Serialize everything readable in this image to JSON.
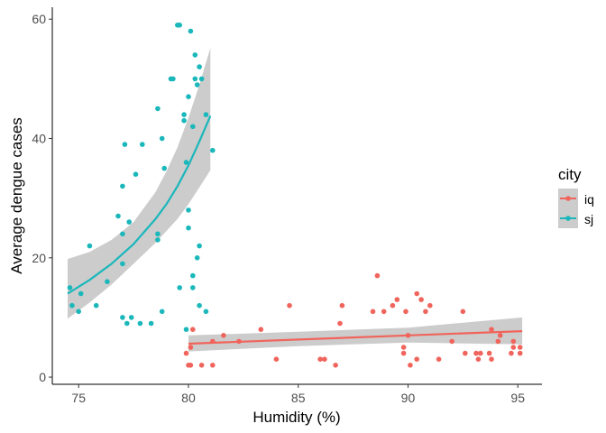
{
  "chart_data": {
    "type": "scatter",
    "xlabel": "Humidity (%)",
    "ylabel": "Average dengue cases",
    "xlim": [
      73.8,
      96.1
    ],
    "ylim": [
      -1.2,
      62
    ],
    "x_ticks": [
      75,
      80,
      85,
      90,
      95
    ],
    "y_ticks": [
      0,
      20,
      40,
      60
    ],
    "grid": false,
    "legend": {
      "title": "city",
      "position": "right"
    },
    "band_color": "#cccccc",
    "series": [
      {
        "name": "iq",
        "color": "#f0645c",
        "points": [
          [
            79.9,
            4
          ],
          [
            80.0,
            2
          ],
          [
            80.1,
            2
          ],
          [
            80.1,
            5
          ],
          [
            80.2,
            8
          ],
          [
            80.6,
            2
          ],
          [
            81.1,
            6
          ],
          [
            81.1,
            2
          ],
          [
            81.6,
            7
          ],
          [
            82.3,
            6
          ],
          [
            83.3,
            8
          ],
          [
            84.0,
            3
          ],
          [
            84.6,
            12
          ],
          [
            86.0,
            3
          ],
          [
            86.2,
            3
          ],
          [
            86.7,
            2
          ],
          [
            86.9,
            9
          ],
          [
            87.0,
            12
          ],
          [
            88.4,
            11
          ],
          [
            88.6,
            17
          ],
          [
            88.9,
            11
          ],
          [
            89.3,
            12
          ],
          [
            89.5,
            13
          ],
          [
            89.8,
            4
          ],
          [
            89.8,
            5
          ],
          [
            89.9,
            11
          ],
          [
            90.0,
            7
          ],
          [
            90.1,
            2
          ],
          [
            90.4,
            3
          ],
          [
            90.4,
            14
          ],
          [
            90.6,
            13
          ],
          [
            90.8,
            11
          ],
          [
            91.0,
            12
          ],
          [
            91.4,
            3
          ],
          [
            92.0,
            6
          ],
          [
            92.5,
            11
          ],
          [
            92.6,
            4
          ],
          [
            93.1,
            4
          ],
          [
            93.2,
            3
          ],
          [
            93.3,
            4
          ],
          [
            93.7,
            4
          ],
          [
            93.8,
            8
          ],
          [
            93.8,
            3
          ],
          [
            94.1,
            6
          ],
          [
            94.2,
            7
          ],
          [
            94.7,
            4
          ],
          [
            94.8,
            6
          ],
          [
            94.8,
            5
          ],
          [
            95.1,
            5
          ],
          [
            95.1,
            4
          ]
        ],
        "trend": [
          [
            80.0,
            5.6
          ],
          [
            85.0,
            6.3
          ],
          [
            90.0,
            7.0
          ],
          [
            95.2,
            7.7
          ]
        ],
        "band_upper": [
          [
            80.0,
            7.0
          ],
          [
            85.0,
            7.6
          ],
          [
            90.0,
            8.3
          ],
          [
            95.2,
            10.0
          ]
        ],
        "band_lower": [
          [
            80.0,
            4.3
          ],
          [
            85.0,
            5.2
          ],
          [
            90.0,
            5.8
          ],
          [
            95.2,
            5.5
          ]
        ]
      },
      {
        "name": "sj",
        "color": "#1ab7bb",
        "points": [
          [
            74.6,
            15
          ],
          [
            74.7,
            12
          ],
          [
            75.0,
            11
          ],
          [
            75.1,
            14
          ],
          [
            75.5,
            22
          ],
          [
            75.8,
            12
          ],
          [
            76.3,
            16
          ],
          [
            76.8,
            27
          ],
          [
            77.0,
            19
          ],
          [
            77.0,
            10
          ],
          [
            77.0,
            24
          ],
          [
            77.0,
            32
          ],
          [
            77.1,
            39
          ],
          [
            77.2,
            9
          ],
          [
            77.3,
            26
          ],
          [
            77.4,
            10
          ],
          [
            77.6,
            34
          ],
          [
            77.8,
            9
          ],
          [
            77.9,
            39
          ],
          [
            78.3,
            9
          ],
          [
            78.6,
            24
          ],
          [
            78.6,
            23
          ],
          [
            78.6,
            45
          ],
          [
            78.8,
            11
          ],
          [
            78.8,
            40
          ],
          [
            78.9,
            35
          ],
          [
            79.2,
            50
          ],
          [
            79.3,
            50
          ],
          [
            79.5,
            59
          ],
          [
            79.6,
            59
          ],
          [
            79.6,
            15
          ],
          [
            79.8,
            44
          ],
          [
            79.8,
            43
          ],
          [
            79.9,
            36
          ],
          [
            80.0,
            28
          ],
          [
            80.0,
            25
          ],
          [
            80.0,
            47
          ],
          [
            80.1,
            58
          ],
          [
            80.2,
            42
          ],
          [
            80.2,
            17
          ],
          [
            80.2,
            15
          ],
          [
            80.3,
            54
          ],
          [
            80.3,
            50
          ],
          [
            80.4,
            49
          ],
          [
            80.4,
            20
          ],
          [
            80.5,
            52
          ],
          [
            80.5,
            12
          ],
          [
            80.5,
            22
          ],
          [
            80.6,
            50
          ],
          [
            80.8,
            11
          ],
          [
            80.8,
            44
          ],
          [
            79.9,
            8
          ],
          [
            81.1,
            38
          ]
        ],
        "trend": [
          [
            74.5,
            14.0
          ],
          [
            75.5,
            16.3
          ],
          [
            76.5,
            19.0
          ],
          [
            77.5,
            22.3
          ],
          [
            78.5,
            26.5
          ],
          [
            79.0,
            29.0
          ],
          [
            79.5,
            32.0
          ],
          [
            80.0,
            35.5
          ],
          [
            80.5,
            39.5
          ],
          [
            81.0,
            43.8
          ]
        ],
        "band_upper": [
          [
            74.5,
            19.8
          ],
          [
            75.5,
            21.0
          ],
          [
            76.5,
            23.0
          ],
          [
            77.5,
            26.0
          ],
          [
            78.5,
            31.0
          ],
          [
            79.0,
            34.5
          ],
          [
            79.5,
            38.5
          ],
          [
            80.0,
            43.5
          ],
          [
            80.5,
            49.0
          ],
          [
            81.0,
            55.2
          ]
        ],
        "band_lower": [
          [
            74.5,
            9.8
          ],
          [
            75.5,
            12.5
          ],
          [
            76.5,
            15.5
          ],
          [
            77.5,
            19.0
          ],
          [
            78.5,
            22.5
          ],
          [
            79.0,
            24.5
          ],
          [
            79.5,
            26.5
          ],
          [
            80.0,
            29.0
          ],
          [
            80.5,
            31.8
          ],
          [
            81.0,
            34.7
          ]
        ]
      }
    ]
  }
}
